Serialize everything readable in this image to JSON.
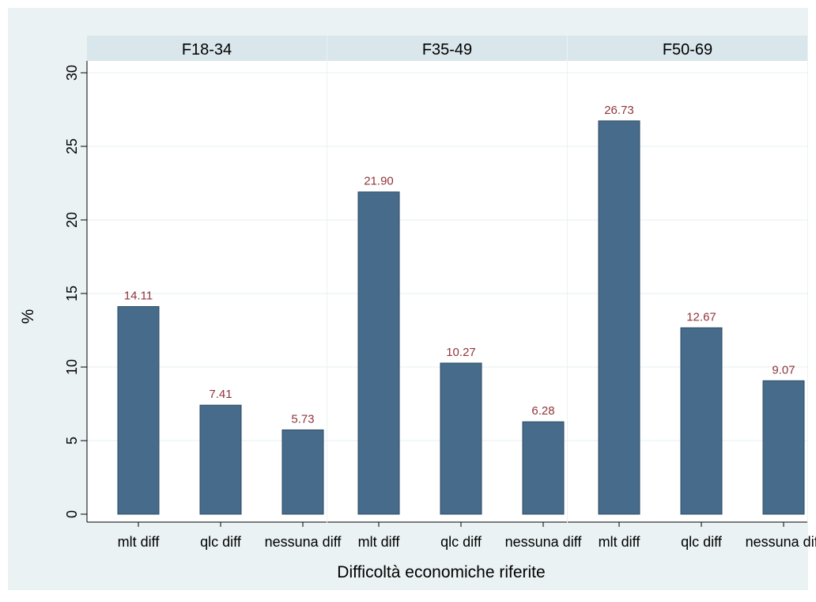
{
  "chart_data": {
    "type": "bar",
    "ylabel": "%",
    "xlabel": "Difficoltà economiche riferite",
    "ylim": [
      0,
      30
    ],
    "yticks": [
      0,
      5,
      10,
      15,
      20,
      25,
      30
    ],
    "grid": true,
    "categories": [
      "mlt diff",
      "qlc diff",
      "nessuna diff"
    ],
    "panels": [
      {
        "name": "F18-34",
        "values": [
          14.11,
          7.41,
          5.73
        ],
        "value_labels": [
          "14.11",
          "7.41",
          "5.73"
        ]
      },
      {
        "name": "F35-49",
        "values": [
          21.9,
          10.27,
          6.28
        ],
        "value_labels": [
          "21.90",
          "10.27",
          "6.28"
        ]
      },
      {
        "name": "F50-69",
        "values": [
          26.73,
          12.67,
          9.07
        ],
        "value_labels": [
          "26.73",
          "12.67",
          "9.07"
        ]
      }
    ],
    "colors": {
      "background": "#eaf2f3",
      "plot": "#ffffff",
      "panel_header": "#d9e6eb",
      "bar": "#476b8b",
      "bar_stroke": "#2c4a63",
      "value_label": "#90353b",
      "grid": "#eaf2f3",
      "text": "#000000"
    }
  }
}
